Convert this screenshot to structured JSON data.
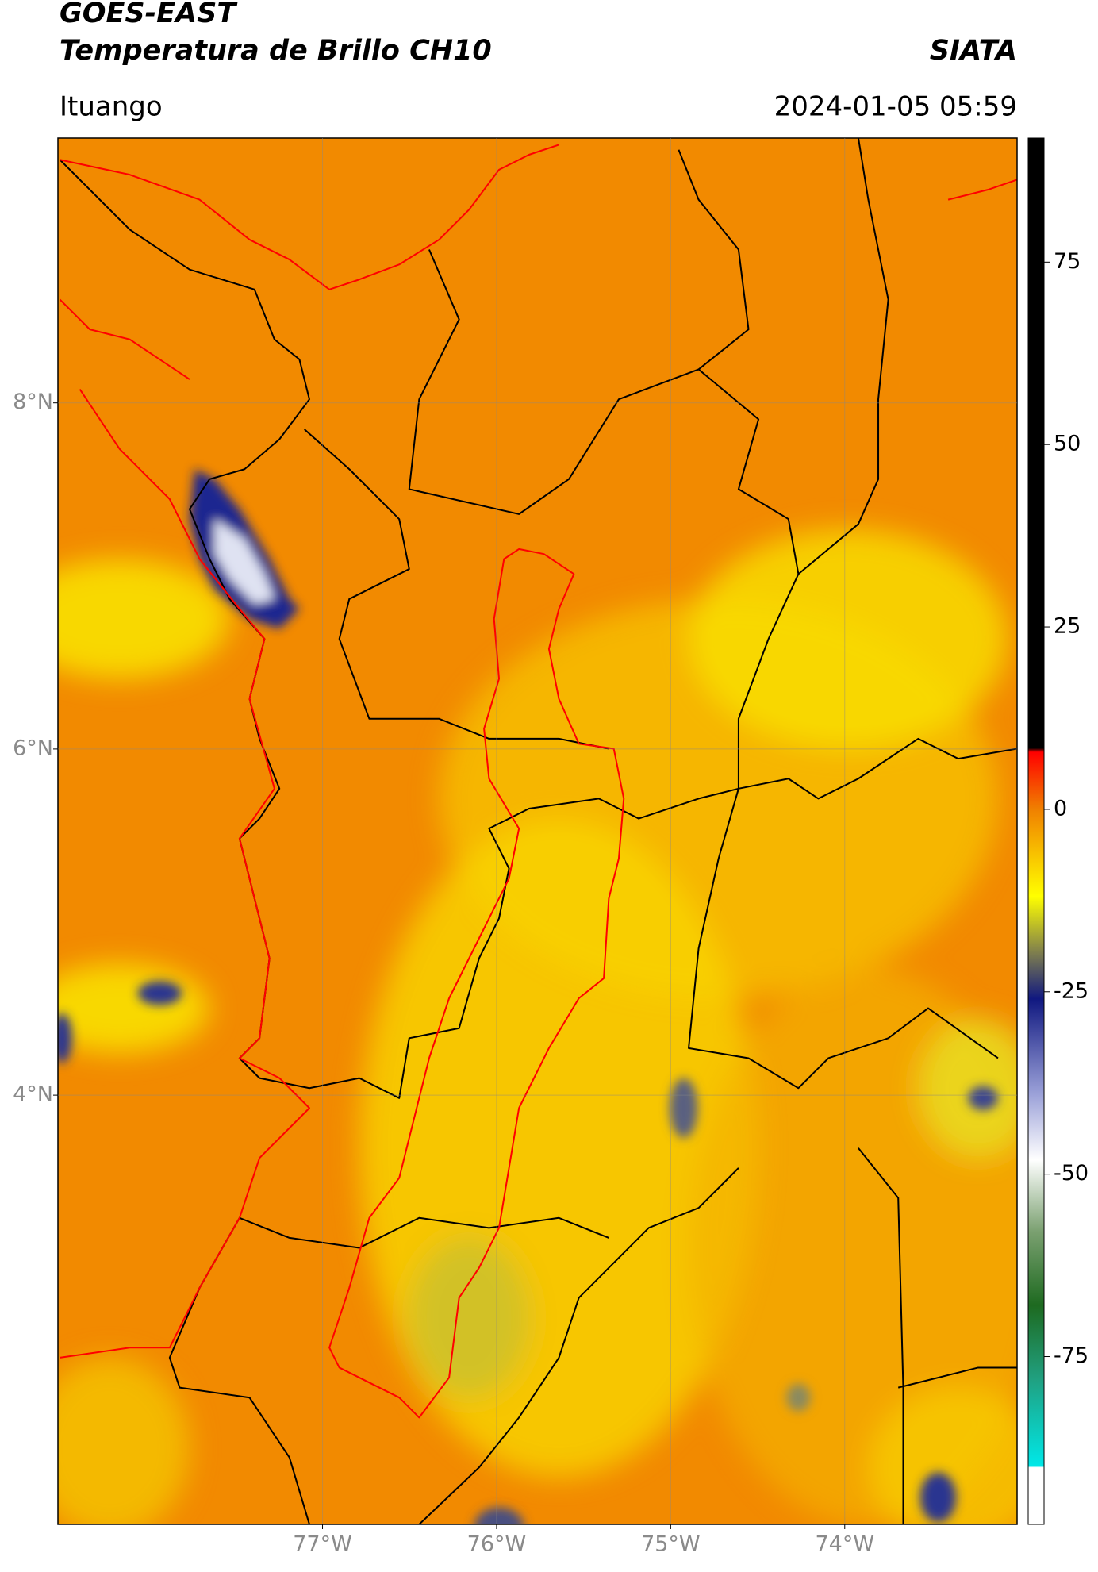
{
  "header": {
    "title": "GOES-EAST",
    "subtitle": "Temperatura de Brillo CH10",
    "source": "SIATA",
    "region": "Ituango",
    "datetime": "2024-01-05 05:59"
  },
  "map": {
    "lonlim": [
      -78.52,
      -73.01
    ],
    "latlim": [
      1.52,
      9.53
    ],
    "lat_ticks": [
      {
        "value": 8,
        "label": "8°N"
      },
      {
        "value": 6,
        "label": "6°N"
      },
      {
        "value": 4,
        "label": "4°N"
      }
    ],
    "lon_ticks": [
      {
        "value": -77,
        "label": "77°W"
      },
      {
        "value": -76,
        "label": "76°W"
      },
      {
        "value": -75,
        "label": "75°W"
      },
      {
        "value": -74,
        "label": "74°W"
      }
    ]
  },
  "colorbar": {
    "lim": [
      -98,
      92
    ],
    "ticks": [
      75,
      50,
      25,
      0,
      -25,
      -50,
      -75
    ]
  }
}
